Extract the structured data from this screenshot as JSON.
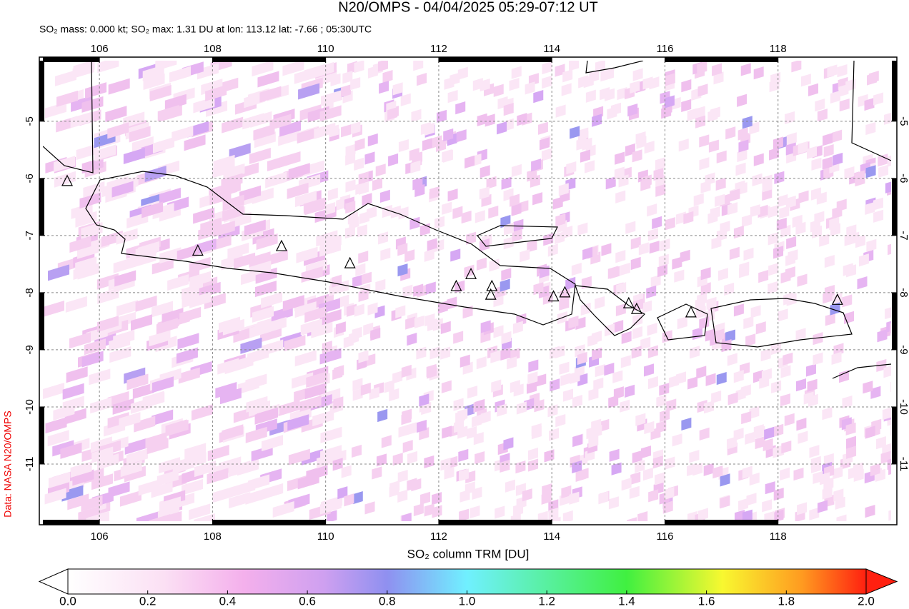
{
  "chart_data": {
    "type": "map",
    "title": "N20/OMPS - 04/04/2025 05:29-07:12 UT",
    "subtitle": "SO₂ mass: 0.000 kt; SO₂ max: 1.31 DU at lon: 113.12 lat: -7.66 ; 05:30UTC",
    "side_label": "Data: NASA N20/OMPS",
    "xlim": [
      105,
      120
    ],
    "ylim": [
      -12,
      -3.94
    ],
    "xticks": [
      106,
      108,
      110,
      112,
      114,
      116,
      118
    ],
    "yticks": [
      -5,
      -6,
      -7,
      -8,
      -9,
      -10,
      -11
    ],
    "grid": true,
    "volcanoes": {
      "lon": [
        107.74,
        109.22,
        110.43,
        105.43,
        112.31,
        112.57,
        112.94,
        112.92,
        114.03,
        114.23,
        115.36,
        115.5,
        116.46,
        119.05
      ],
      "lat": [
        -7.27,
        -7.19,
        -7.49,
        -6.05,
        -7.89,
        -7.68,
        -7.89,
        -8.04,
        -8.07,
        -8.0,
        -8.19,
        -8.29,
        -8.35,
        -8.13
      ]
    },
    "colorbar": {
      "label": "SO₂ column TRM [DU]",
      "lim": [
        0,
        2
      ],
      "ticks": [
        {
          "value": 0,
          "label": "0.0"
        },
        {
          "value": 0.2,
          "label": "0.2"
        },
        {
          "value": 0.4,
          "label": "0.4"
        },
        {
          "value": 0.6,
          "label": "0.6"
        },
        {
          "value": 0.8,
          "label": "0.8"
        },
        {
          "value": 1,
          "label": "1.0"
        },
        {
          "value": 1.2,
          "label": "1.2"
        },
        {
          "value": 1.4,
          "label": "1.4"
        },
        {
          "value": 1.6,
          "label": "1.6"
        },
        {
          "value": 1.8,
          "label": "1.8"
        },
        {
          "value": 2,
          "label": "2.0"
        }
      ]
    }
  }
}
